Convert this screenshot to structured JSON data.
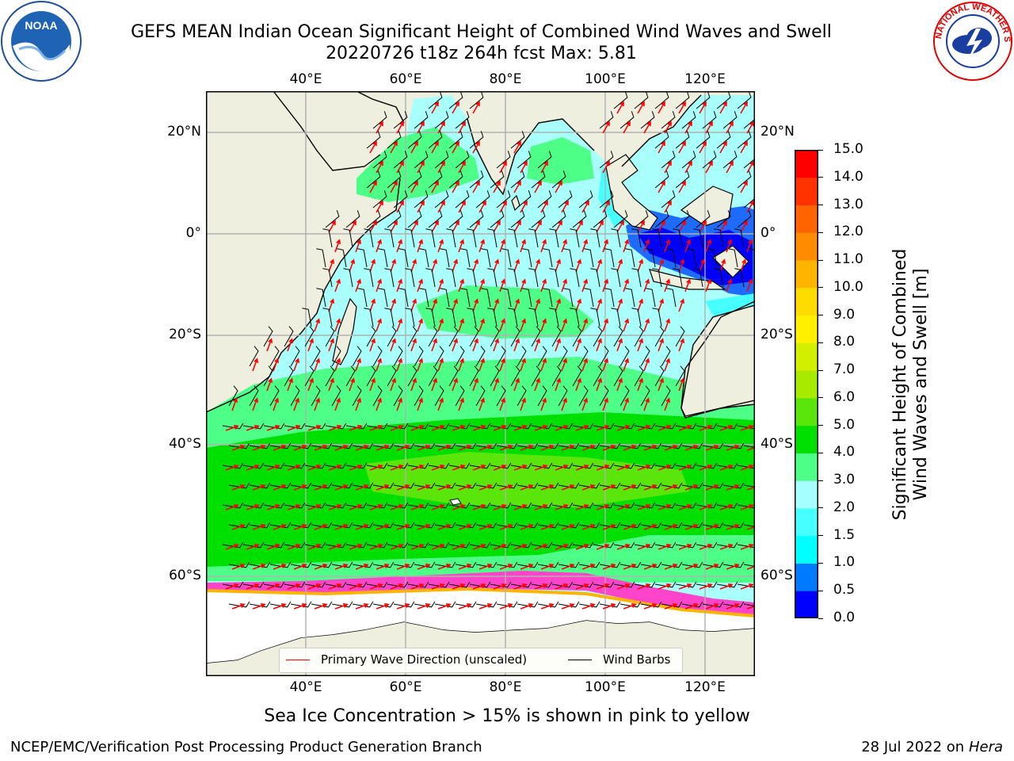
{
  "title": {
    "line1": "GEFS MEAN Indian Ocean Significant Height of Combined Wind Waves and Swell",
    "line2": "20220726 t18z 264h fcst   Max: 5.81"
  },
  "map": {
    "lon_labels": [
      "40°E",
      "60°E",
      "80°E",
      "100°E",
      "120°E"
    ],
    "lat_labels": [
      "20°N",
      "0°",
      "20°S",
      "40°S",
      "60°S"
    ],
    "lon_range": [
      20,
      130
    ],
    "lat_range": [
      -75,
      27
    ],
    "colors": {
      "land": "#efefdf",
      "ocean_light": "#a8fffc",
      "ice": "#ffffff",
      "grid": "#b0b0b0",
      "arrow": "#ff0000",
      "barb": "#000000"
    }
  },
  "chart_data": {
    "type": "heatmap",
    "colorbar": {
      "label_line1": "Significant Height of Combined",
      "label_line2": "Wind Waves and Swell [m]",
      "ticks": [
        "0.0",
        "0.5",
        "1.0",
        "1.5",
        "2.0",
        "3.0",
        "4.0",
        "5.0",
        "6.0",
        "7.0",
        "8.0",
        "9.0",
        "10.0",
        "11.0",
        "12.0",
        "13.0",
        "14.0",
        "15.0"
      ],
      "colors": [
        "#0000ff",
        "#007bff",
        "#00ffff",
        "#46ffff",
        "#a6ffff",
        "#4dff87",
        "#00e000",
        "#5ae60a",
        "#a8ea00",
        "#d2ef00",
        "#fff000",
        "#ffdc00",
        "#ffb400",
        "#ff8c00",
        "#ff6400",
        "#ff3200",
        "#ff0000"
      ]
    },
    "max_value": 5.81
  },
  "legend": {
    "wave_label": "Primary Wave Direction (unscaled)",
    "barb_label": "Wind Barbs"
  },
  "notes": {
    "sea_ice": "Sea Ice Concentration > 15% is shown in pink to yellow"
  },
  "footer": {
    "left": "NCEP/EMC/Verification Post Processing Product Generation Branch",
    "right_date": "28 Jul 2022 on ",
    "right_host": "Hera"
  },
  "logos": {
    "noaa": "NOAA",
    "nws": "NATIONAL WEATHER SERVICE"
  }
}
